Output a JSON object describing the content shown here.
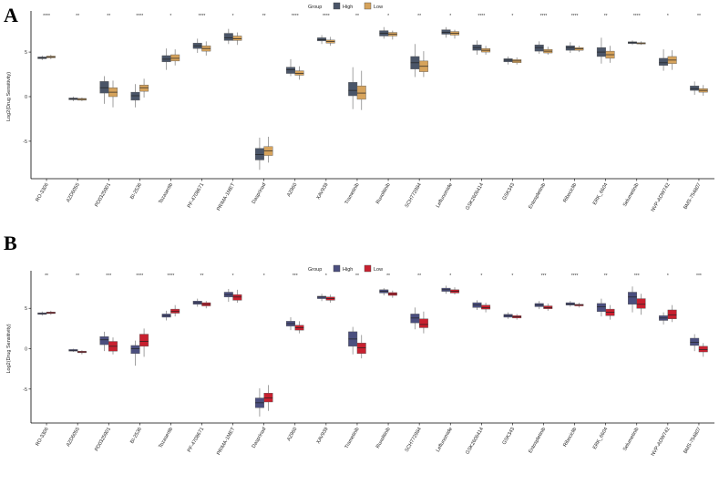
{
  "chart_data": [
    {
      "type": "boxplot",
      "panel_label": "A",
      "ylabel": "Log2(Drug Sensitivity)",
      "ylim": [
        -9.2,
        9.2
      ],
      "yticks": [
        -5,
        0,
        5
      ],
      "legend": {
        "title": "Group",
        "placement": "top-center",
        "entries": [
          "High",
          "Low"
        ]
      },
      "colors": {
        "High": "#4a5568",
        "Low": "#d6a35c"
      },
      "categories": [
        "RO-3306",
        "AZD6055",
        "PD0325901",
        "BI-2536",
        "Tozasertib",
        "PF-4708671",
        "PRIMA-1MET",
        "Dasprinad",
        "AZ960",
        "XAV939",
        "Trametinib",
        "Ruxolitinib",
        "SCH772984",
        "Leflunomide",
        "GSK2606414",
        "GSK343",
        "Entospletinib",
        "Ribociclib",
        "ERK_6604",
        "Selumetinib",
        "NVP-ADW742",
        "BMS-754807"
      ],
      "significance": [
        "****",
        "**",
        "**",
        "****",
        "*",
        "****",
        "*",
        "**",
        "****",
        "****",
        "**",
        "*",
        "**",
        "*",
        "****",
        "*",
        "****",
        "****",
        "**",
        "****",
        "*",
        "**"
      ],
      "series": [
        {
          "name": "High",
          "boxes": [
            [
              4.1,
              4.25,
              4.35,
              4.45,
              4.6
            ],
            [
              -0.5,
              -0.35,
              -0.25,
              -0.15,
              0.0
            ],
            [
              -0.8,
              0.4,
              1.0,
              1.7,
              2.3
            ],
            [
              -1.2,
              -0.4,
              0.1,
              0.5,
              1.4
            ],
            [
              3.0,
              3.9,
              4.2,
              4.6,
              5.4
            ],
            [
              4.9,
              5.4,
              5.7,
              6.0,
              6.5
            ],
            [
              5.9,
              6.3,
              6.6,
              7.1,
              7.6
            ],
            [
              -8.2,
              -7.1,
              -6.5,
              -5.8,
              -4.6
            ],
            [
              2.3,
              2.6,
              3.0,
              3.3,
              4.2
            ],
            [
              5.9,
              6.25,
              6.4,
              6.6,
              6.9
            ],
            [
              -1.4,
              0.1,
              0.7,
              1.6,
              3.3
            ],
            [
              6.5,
              6.8,
              7.1,
              7.4,
              7.8
            ],
            [
              2.2,
              3.1,
              3.8,
              4.5,
              5.9
            ],
            [
              6.6,
              7.0,
              7.2,
              7.5,
              7.8
            ],
            [
              4.7,
              5.2,
              5.5,
              5.8,
              6.3
            ],
            [
              3.6,
              3.9,
              4.1,
              4.25,
              4.5
            ],
            [
              4.8,
              5.1,
              5.5,
              5.8,
              6.2
            ],
            [
              4.9,
              5.2,
              5.5,
              5.7,
              6.1
            ],
            [
              3.7,
              4.5,
              5.0,
              5.5,
              6.6
            ],
            [
              5.8,
              5.95,
              6.05,
              6.15,
              6.3
            ],
            [
              2.9,
              3.5,
              3.8,
              4.3,
              5.3
            ],
            [
              0.2,
              0.7,
              0.9,
              1.2,
              1.7
            ]
          ]
        },
        {
          "name": "Low",
          "boxes": [
            [
              4.2,
              4.35,
              4.45,
              4.55,
              4.7
            ],
            [
              -0.5,
              -0.4,
              -0.3,
              -0.2,
              -0.1
            ],
            [
              -1.2,
              0.0,
              0.5,
              1.0,
              1.8
            ],
            [
              -0.1,
              0.6,
              1.0,
              1.3,
              2.0
            ],
            [
              3.5,
              4.0,
              4.3,
              4.7,
              5.3
            ],
            [
              4.6,
              5.1,
              5.4,
              5.7,
              6.2
            ],
            [
              5.8,
              6.3,
              6.5,
              6.8,
              7.2
            ],
            [
              -7.4,
              -6.6,
              -6.1,
              -5.6,
              -4.5
            ],
            [
              1.9,
              2.4,
              2.6,
              2.9,
              3.4
            ],
            [
              5.7,
              6.0,
              6.2,
              6.35,
              6.7
            ],
            [
              -1.5,
              -0.3,
              0.4,
              1.2,
              2.9
            ],
            [
              6.4,
              6.8,
              7.0,
              7.2,
              7.4
            ],
            [
              2.2,
              2.8,
              3.4,
              4.0,
              5.1
            ],
            [
              6.5,
              6.9,
              7.1,
              7.3,
              7.5
            ],
            [
              4.7,
              5.0,
              5.2,
              5.4,
              5.7
            ],
            [
              3.6,
              3.8,
              4.0,
              4.15,
              4.4
            ],
            [
              4.7,
              4.9,
              5.1,
              5.3,
              5.6
            ],
            [
              5.0,
              5.2,
              5.35,
              5.5,
              5.7
            ],
            [
              3.8,
              4.3,
              4.7,
              5.1,
              5.7
            ],
            [
              5.8,
              5.9,
              6.0,
              6.05,
              6.2
            ],
            [
              3.0,
              3.7,
              4.1,
              4.5,
              5.2
            ],
            [
              0.1,
              0.5,
              0.7,
              0.9,
              1.3
            ]
          ]
        }
      ]
    },
    {
      "type": "boxplot",
      "panel_label": "B",
      "ylabel": "Log2(Drug Sensitivity)",
      "ylim": [
        -9.2,
        9.2
      ],
      "yticks": [
        -5,
        0,
        5
      ],
      "legend": {
        "title": "Group",
        "placement": "top-center",
        "entries": [
          "High",
          "Low"
        ]
      },
      "colors": {
        "High": "#4b4f7f",
        "Low": "#c8202f"
      },
      "categories": [
        "RO-3306",
        "AZD6055",
        "PD0325901",
        "BI-2536",
        "Tozasertib",
        "PF-4708671",
        "PRIMA-1MET",
        "Dasprinad",
        "AZ960",
        "XAV939",
        "Trametinib",
        "Ruxolitinib",
        "SCH772984",
        "Leflunomide",
        "GSK2606414",
        "GSK343",
        "Entospletinib",
        "Ribociclib",
        "ERK_6604",
        "Selumetinib",
        "NVP-ADW742",
        "BMS-754807"
      ],
      "significance": [
        "**",
        "**",
        "***",
        "****",
        "****",
        "**",
        "*",
        "*",
        "***",
        "*",
        "**",
        "**",
        "**",
        "*",
        "*",
        "*",
        "***",
        "****",
        "**",
        "***",
        "*",
        "***"
      ],
      "series": [
        {
          "name": "High",
          "boxes": [
            [
              4.1,
              4.25,
              4.35,
              4.45,
              4.6
            ],
            [
              -0.4,
              -0.3,
              -0.2,
              -0.1,
              0.0
            ],
            [
              -0.3,
              0.5,
              1.1,
              1.5,
              2.1
            ],
            [
              -2.1,
              -0.6,
              0.0,
              0.4,
              1.0
            ],
            [
              3.5,
              3.9,
              4.1,
              4.3,
              4.7
            ],
            [
              5.2,
              5.5,
              5.7,
              5.9,
              6.2
            ],
            [
              5.8,
              6.4,
              6.7,
              7.0,
              7.4
            ],
            [
              -8.4,
              -7.3,
              -6.7,
              -6.1,
              -4.9
            ],
            [
              2.3,
              2.8,
              3.1,
              3.4,
              3.9
            ],
            [
              5.9,
              6.2,
              6.4,
              6.5,
              6.8
            ],
            [
              -0.7,
              0.3,
              1.2,
              2.1,
              2.7
            ],
            [
              6.6,
              6.9,
              7.1,
              7.3,
              7.5
            ],
            [
              2.4,
              3.2,
              3.8,
              4.3,
              5.1
            ],
            [
              6.8,
              7.1,
              7.3,
              7.5,
              7.8
            ],
            [
              4.8,
              5.1,
              5.4,
              5.7,
              6.0
            ],
            [
              3.7,
              3.9,
              4.1,
              4.25,
              4.5
            ],
            [
              4.9,
              5.2,
              5.4,
              5.6,
              5.9
            ],
            [
              5.2,
              5.4,
              5.55,
              5.7,
              5.9
            ],
            [
              4.0,
              4.6,
              5.2,
              5.6,
              6.2
            ],
            [
              4.5,
              5.5,
              6.4,
              7.0,
              7.7
            ],
            [
              3.0,
              3.5,
              3.8,
              4.1,
              4.5
            ],
            [
              -0.3,
              0.4,
              0.8,
              1.3,
              1.8
            ]
          ]
        },
        {
          "name": "Low",
          "boxes": [
            [
              4.2,
              4.35,
              4.45,
              4.55,
              4.7
            ],
            [
              -0.7,
              -0.5,
              -0.4,
              -0.3,
              -0.2
            ],
            [
              -0.7,
              -0.3,
              0.3,
              0.9,
              1.4
            ],
            [
              -1.0,
              0.3,
              0.9,
              1.8,
              2.5
            ],
            [
              4.0,
              4.4,
              4.6,
              4.9,
              5.4
            ],
            [
              5.0,
              5.3,
              5.5,
              5.7,
              5.9
            ],
            [
              5.7,
              6.0,
              6.4,
              6.7,
              7.3
            ],
            [
              -7.7,
              -6.6,
              -6.1,
              -5.5,
              -4.5
            ],
            [
              1.9,
              2.3,
              2.6,
              2.9,
              3.4
            ],
            [
              5.7,
              6.0,
              6.2,
              6.4,
              6.7
            ],
            [
              -1.2,
              -0.6,
              0.1,
              0.7,
              1.7
            ],
            [
              6.3,
              6.6,
              6.8,
              6.95,
              7.2
            ],
            [
              1.9,
              2.6,
              3.0,
              3.7,
              4.6
            ],
            [
              6.7,
              6.9,
              7.1,
              7.3,
              7.6
            ],
            [
              4.5,
              4.9,
              5.1,
              5.4,
              5.7
            ],
            [
              3.6,
              3.8,
              3.95,
              4.1,
              4.3
            ],
            [
              4.7,
              4.95,
              5.1,
              5.3,
              5.6
            ],
            [
              5.1,
              5.3,
              5.4,
              5.5,
              5.7
            ],
            [
              3.6,
              4.1,
              4.5,
              4.9,
              5.4
            ],
            [
              4.2,
              5.0,
              5.5,
              6.2,
              6.8
            ],
            [
              3.3,
              3.7,
              4.2,
              4.8,
              5.4
            ],
            [
              -1.0,
              -0.4,
              -0.1,
              0.3,
              0.7
            ]
          ]
        }
      ]
    }
  ]
}
